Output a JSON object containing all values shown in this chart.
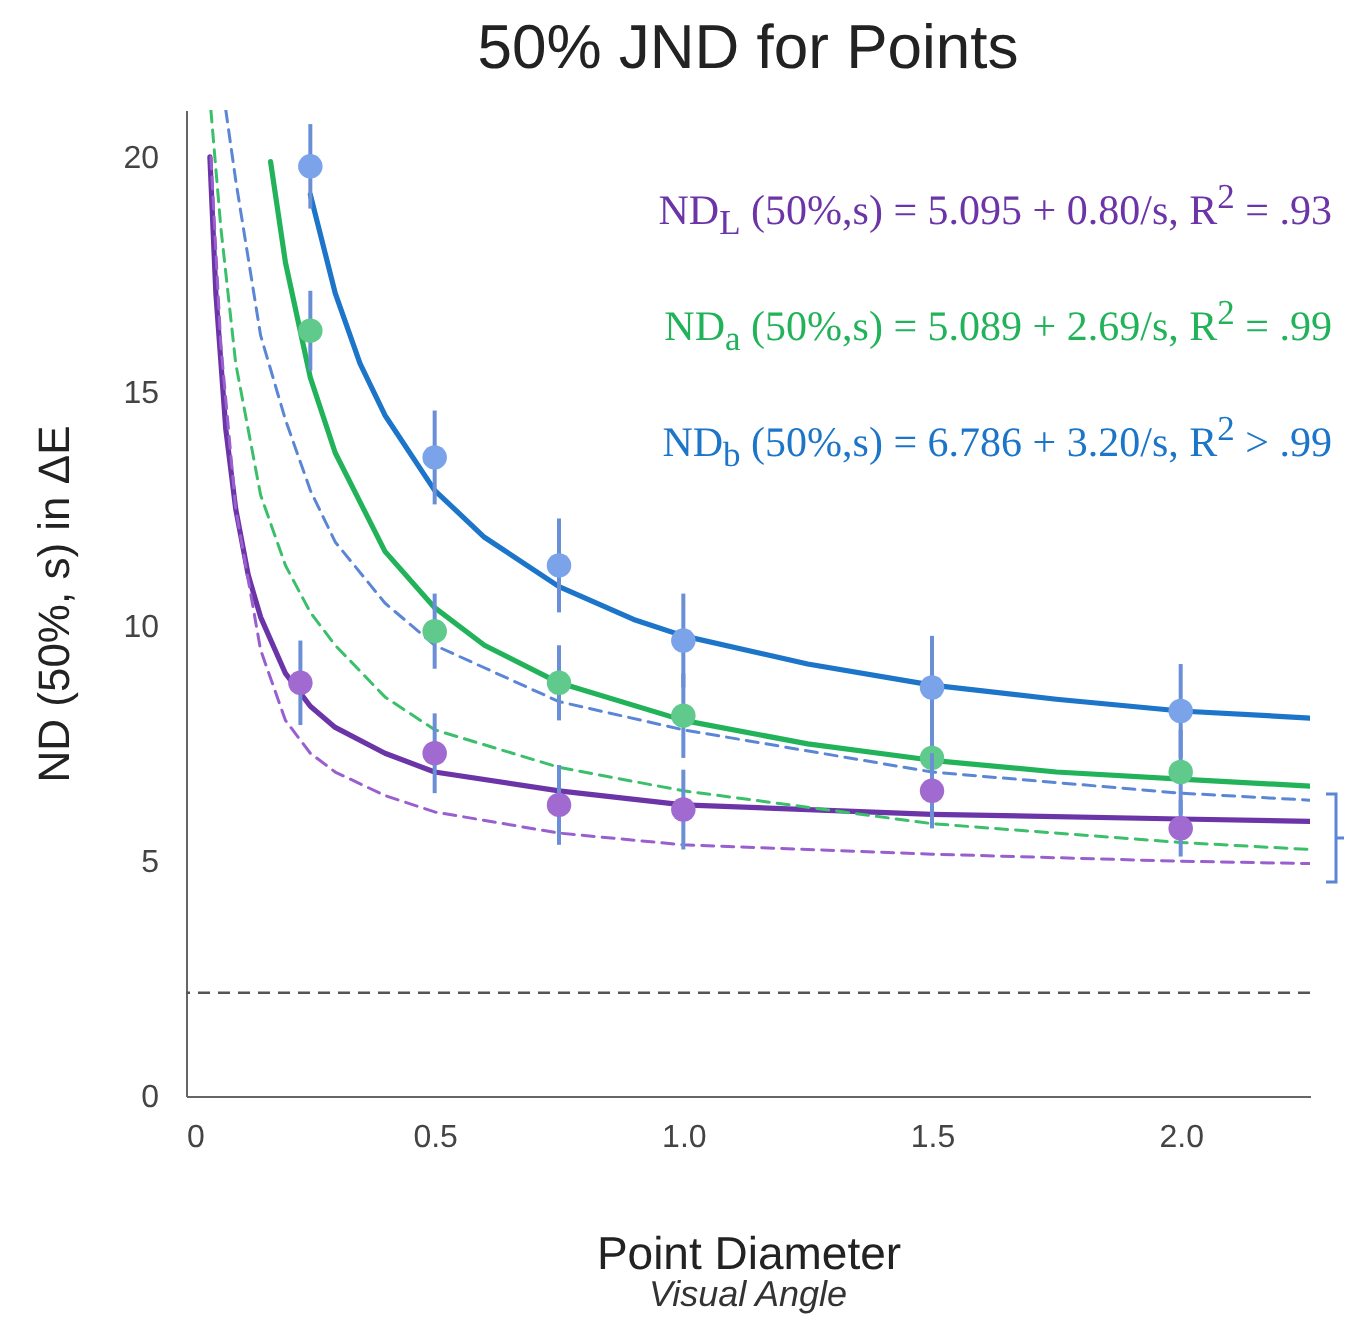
{
  "chart_data": {
    "type": "scatter",
    "title": "50% JND for Points",
    "xlabel": "Point Diameter",
    "ylabel": "ND (50%, s) in ΔE",
    "annotations": [
      "ND$_{L}$ (50%,s) = 5.095 + 0.80/s, R$^{2}$ = .93",
      "ND$_{a}$ (50%,s) = 5.089 + 2.69/s, R$^{2}$ = .99",
      "ND$_{b}$ (50%,s) = 6.786 + 3.20/s, R$^{2}$ > .99",
      "Visual Angle"
    ],
    "xlim": [
      0,
      2.26
    ],
    "ylim": [
      0,
      21
    ],
    "xticks": [
      0,
      {
        "value": 0.5,
        "label": "0.5"
      },
      {
        "value": 1,
        "label": "1.0"
      },
      {
        "value": 1.5,
        "label": "1.5"
      },
      {
        "value": 2,
        "label": "2.0"
      }
    ],
    "yticks": [
      0,
      5,
      10,
      15,
      20
    ],
    "grid": false,
    "ref_lines": [
      {
        "axis": "y",
        "value": 2.2,
        "color": "#555555",
        "line_style": "dashed"
      }
    ],
    "series": [
      {
        "type": "line",
        "color": "#6b35a8",
        "line_style": "solid",
        "x": [
          0.048,
          0.06,
          0.08,
          0.1,
          0.125,
          0.15,
          0.2,
          0.25,
          0.3,
          0.4,
          0.5,
          0.75,
          1.0,
          1.5,
          2.0,
          2.26
        ],
        "values": [
          20.0,
          17.1,
          14.2,
          12.5,
          11.1,
          10.2,
          9.0,
          8.3,
          7.85,
          7.3,
          6.9,
          6.5,
          6.2,
          6.0,
          5.9,
          5.85
        ]
      },
      {
        "type": "line",
        "color": "#22b35a",
        "line_style": "solid",
        "x": [
          0.17,
          0.2,
          0.25,
          0.3,
          0.4,
          0.5,
          0.6,
          0.75,
          1.0,
          1.25,
          1.5,
          1.75,
          2.0,
          2.26
        ],
        "values": [
          19.9,
          17.75,
          15.3,
          13.7,
          11.6,
          10.4,
          9.6,
          8.8,
          8.0,
          7.5,
          7.15,
          6.9,
          6.75,
          6.6
        ]
      },
      {
        "type": "line",
        "color": "#1c75c8",
        "line_style": "solid",
        "x": [
          0.25,
          0.3,
          0.35,
          0.4,
          0.5,
          0.6,
          0.75,
          0.9,
          1.0,
          1.25,
          1.5,
          1.75,
          2.0,
          2.26
        ],
        "values": [
          19.2,
          17.1,
          15.6,
          14.5,
          12.9,
          11.9,
          10.85,
          10.15,
          9.8,
          9.2,
          8.75,
          8.45,
          8.2,
          8.05
        ]
      },
      {
        "type": "line",
        "color": "#5b86d6",
        "line_style": "dashed",
        "x": [
          0.08,
          0.1,
          0.15,
          0.2,
          0.25,
          0.3,
          0.4,
          0.5,
          0.75,
          1.0,
          1.5,
          2.0,
          2.26
        ],
        "values": [
          21.0,
          19.5,
          16.2,
          14.4,
          12.9,
          11.8,
          10.5,
          9.6,
          8.4,
          7.8,
          6.9,
          6.45,
          6.3
        ]
      },
      {
        "type": "line",
        "color": "#3bbf6a",
        "line_style": "dashed",
        "x": [
          0.05,
          0.07,
          0.1,
          0.15,
          0.2,
          0.25,
          0.3,
          0.4,
          0.5,
          0.75,
          1.0,
          1.5,
          2.0,
          2.26
        ],
        "values": [
          21.0,
          18.5,
          15.6,
          12.8,
          11.3,
          10.3,
          9.6,
          8.5,
          7.8,
          7.0,
          6.5,
          5.8,
          5.4,
          5.25
        ]
      },
      {
        "type": "line",
        "color": "#9a5fce",
        "line_style": "dashed",
        "x": [
          0.05,
          0.07,
          0.1,
          0.15,
          0.2,
          0.25,
          0.3,
          0.4,
          0.5,
          0.75,
          1.0,
          1.5,
          2.0,
          2.26
        ],
        "values": [
          20.0,
          16.0,
          12.5,
          9.5,
          8.0,
          7.3,
          6.9,
          6.4,
          6.05,
          5.6,
          5.35,
          5.15,
          5.0,
          4.95
        ]
      },
      {
        "marker": "circle",
        "color": "#7aa3ea",
        "x": [
          0.25,
          0.5,
          0.75,
          1.0,
          1.5,
          2.0
        ],
        "values": [
          19.8,
          13.6,
          11.3,
          9.7,
          8.7,
          8.2
        ],
        "errors": [
          0.9,
          1.0,
          1.0,
          1.0,
          1.1,
          1.0
        ]
      },
      {
        "marker": "circle",
        "color": "#5fca8c",
        "x": [
          0.25,
          0.5,
          0.75,
          1.0,
          1.5,
          2.0
        ],
        "values": [
          16.3,
          9.9,
          8.8,
          8.1,
          7.2,
          6.9
        ],
        "errors": [
          0.85,
          0.8,
          0.8,
          0.9,
          0.9,
          0.9
        ]
      },
      {
        "marker": "circle",
        "color": "#a06ad0",
        "x": [
          0.23,
          0.5,
          0.75,
          1.0,
          1.5,
          2.0
        ],
        "values": [
          8.8,
          7.3,
          6.2,
          6.1,
          6.5,
          5.7
        ],
        "errors": [
          0.9,
          0.85,
          0.85,
          0.85,
          0.8,
          0.6
        ]
      }
    ]
  }
}
